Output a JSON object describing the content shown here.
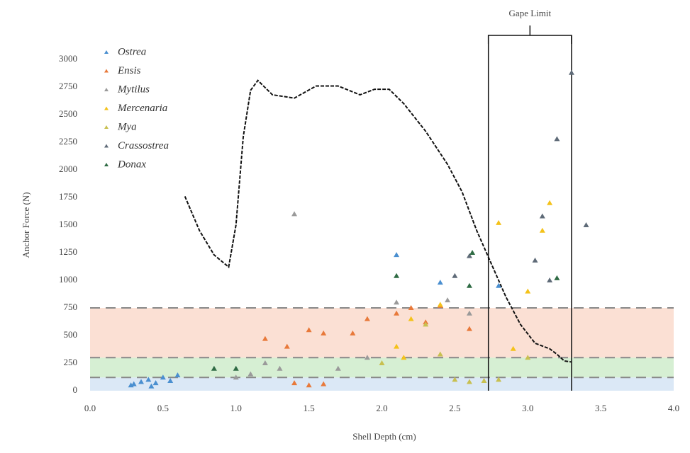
{
  "chart_data": {
    "type": "scatter",
    "xlabel": "Shell Depth (cm)",
    "ylabel": "Anchor Force (N)",
    "xlim": [
      0,
      4
    ],
    "ylim": [
      0,
      3000
    ],
    "xticks": [
      {
        "value": 0,
        "label": "0.0"
      },
      {
        "value": 0.5,
        "label": "0.5"
      },
      {
        "value": 1,
        "label": "1.0"
      },
      {
        "value": 1.5,
        "label": "1.5"
      },
      {
        "value": 2,
        "label": "2.0"
      },
      {
        "value": 2.5,
        "label": "2.5"
      },
      {
        "value": 3,
        "label": "3.0"
      },
      {
        "value": 3.5,
        "label": "3.5"
      },
      {
        "value": 4,
        "label": "4.0"
      }
    ],
    "yticks": [
      0,
      250,
      500,
      750,
      1000,
      1250,
      1500,
      1750,
      2000,
      2250,
      2500,
      2750,
      3000
    ],
    "bands": [
      {
        "range": [
          0,
          120
        ],
        "color": "#dbe8f6"
      },
      {
        "range": [
          120,
          300
        ],
        "color": "#d6efd3"
      },
      {
        "range": [
          300,
          750
        ],
        "color": "#fbe0d4"
      }
    ],
    "gape_limit": {
      "label": "Gape Limit",
      "x": [
        2.73,
        3.3
      ]
    },
    "curve": {
      "color": "#111111",
      "x": [
        0.65,
        0.75,
        0.85,
        0.95,
        1.0,
        1.05,
        1.1,
        1.15,
        1.25,
        1.4,
        1.55,
        1.7,
        1.85,
        1.95,
        2.05,
        2.15,
        2.3,
        2.45,
        2.55,
        2.65,
        2.75,
        2.85,
        2.95,
        3.05,
        3.15,
        3.2,
        3.25,
        3.3
      ],
      "values": [
        1760,
        1450,
        1230,
        1120,
        1500,
        2300,
        2720,
        2810,
        2680,
        2650,
        2760,
        2760,
        2680,
        2730,
        2730,
        2600,
        2350,
        2050,
        1800,
        1450,
        1150,
        850,
        600,
        430,
        380,
        330,
        270,
        260
      ]
    },
    "series": [
      {
        "name": "Ostrea",
        "color": "#4a8fd0",
        "x": [
          0.3,
          0.35,
          0.4,
          0.45,
          0.5,
          0.55,
          0.6,
          0.28,
          0.42,
          2.1,
          2.4,
          2.8
        ],
        "values": [
          60,
          80,
          100,
          70,
          120,
          90,
          140,
          50,
          40,
          1230,
          980,
          950
        ]
      },
      {
        "name": "Ensis",
        "color": "#e8793a",
        "x": [
          1.2,
          1.35,
          1.5,
          1.6,
          1.8,
          1.9,
          2.1,
          2.2,
          2.3,
          2.4,
          2.6,
          1.4,
          1.5,
          1.6
        ],
        "values": [
          470,
          400,
          550,
          520,
          520,
          650,
          700,
          750,
          620,
          770,
          560,
          70,
          50,
          60
        ]
      },
      {
        "name": "Mytilus",
        "color": "#9a9a9a",
        "x": [
          1.0,
          1.1,
          1.2,
          1.3,
          1.4,
          1.7,
          1.9,
          2.1,
          2.45,
          2.6
        ],
        "values": [
          120,
          150,
          250,
          200,
          1600,
          200,
          300,
          800,
          820,
          700
        ]
      },
      {
        "name": "Mercenaria",
        "color": "#f4c21a",
        "x": [
          2.1,
          2.15,
          2.2,
          2.4,
          2.8,
          3.0,
          3.1,
          3.15,
          2.9
        ],
        "values": [
          400,
          300,
          650,
          780,
          1520,
          900,
          1450,
          1700,
          380
        ]
      },
      {
        "name": "Mya",
        "color": "#c8c050",
        "x": [
          2.0,
          2.3,
          2.5,
          2.6,
          2.7,
          2.8,
          3.0,
          2.4
        ],
        "values": [
          250,
          600,
          100,
          80,
          90,
          100,
          300,
          330
        ]
      },
      {
        "name": "Crassostrea",
        "color": "#5f6b78",
        "x": [
          3.1,
          3.2,
          3.3,
          3.4,
          3.15,
          3.05,
          2.6,
          2.5
        ],
        "values": [
          1580,
          2280,
          2880,
          1500,
          1000,
          1180,
          1220,
          1040
        ]
      },
      {
        "name": "Donax",
        "color": "#2f6b44",
        "x": [
          0.85,
          1.0,
          2.1,
          2.6,
          2.62,
          3.2
        ],
        "values": [
          200,
          200,
          1040,
          950,
          1250,
          1020
        ]
      }
    ]
  }
}
